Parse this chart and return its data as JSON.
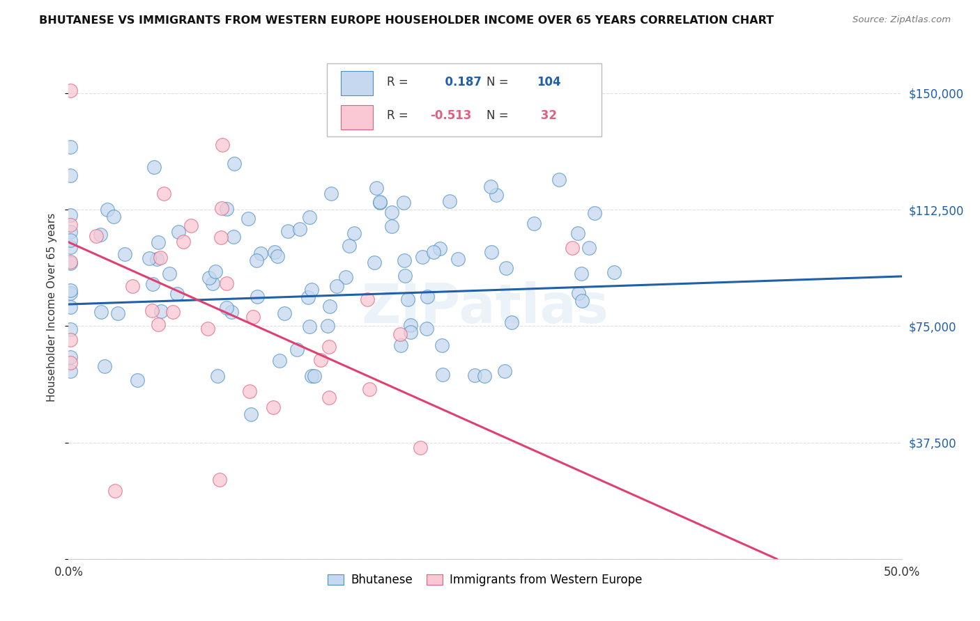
{
  "title": "BHUTANESE VS IMMIGRANTS FROM WESTERN EUROPE HOUSEHOLDER INCOME OVER 65 YEARS CORRELATION CHART",
  "source": "Source: ZipAtlas.com",
  "ylabel": "Householder Income Over 65 years",
  "xlim": [
    0.0,
    0.5
  ],
  "ylim": [
    0,
    162000
  ],
  "yticks": [
    0,
    37500,
    75000,
    112500,
    150000
  ],
  "ytick_labels_right": [
    "",
    "$37,500",
    "$75,000",
    "$112,500",
    "$150,000"
  ],
  "xticks": [
    0.0,
    0.1,
    0.2,
    0.3,
    0.4,
    0.5
  ],
  "blue_R": 0.187,
  "blue_N": 104,
  "pink_R": -0.513,
  "pink_N": 32,
  "blue_fill_color": "#c5d8f0",
  "blue_edge_color": "#4a90c4",
  "pink_fill_color": "#f9c8d4",
  "pink_edge_color": "#e06080",
  "blue_line_color": "#2060a8",
  "pink_line_color": "#e04070",
  "legend_label_blue": "Bhutanese",
  "legend_label_pink": "Immigrants from Western Europe",
  "watermark": "ZIPatlas",
  "background_color": "#ffffff",
  "grid_color": "#d8d8d8",
  "title_color": "#111111",
  "axis_label_color": "#333333",
  "right_tick_color": "#2060a8",
  "blue_line_intercept": 82000,
  "blue_line_slope": 18000,
  "pink_line_intercept": 102000,
  "pink_line_slope": -240000
}
